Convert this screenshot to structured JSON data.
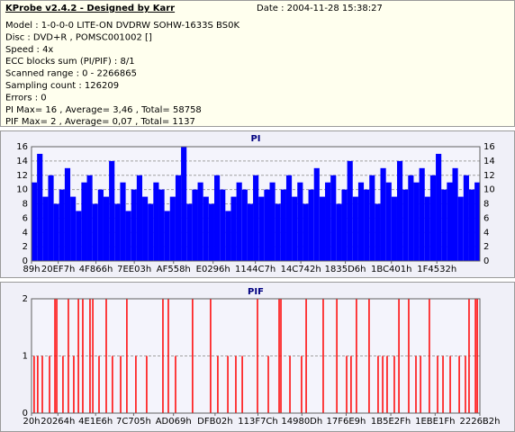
{
  "header": {
    "title": "KProbe v2.4.2 - Designed by Karr",
    "date": "Date : 2004-11-28 15:38:27",
    "lines": [
      "Model : 1-0-0-0 LITE-ON DVDRW SOHW-1633S BS0K",
      "Disc : DVD+R , POMSC001002 []",
      "Speed : 4x",
      "ECC blocks sum (PI/PIF) : 8/1",
      "Scanned range : 0 - 2266865",
      "Sampling count : 126209",
      "Errors : 0",
      "PI Max= 16 , Average= 3,46 , Total= 58758",
      "PIF Max= 2 , Average= 0,07 , Total= 1137"
    ]
  },
  "chart_data": [
    {
      "type": "bar",
      "title": "PI",
      "color": "#0000ff",
      "grid": true,
      "mirror_y_axis": true,
      "x": [
        0,
        28000,
        56000,
        84000,
        112000,
        140000,
        168000,
        196000,
        224000,
        252000,
        280000,
        308000,
        336000,
        364000,
        392000,
        420000,
        448000,
        476000,
        504000,
        532000,
        560000,
        588000,
        616000,
        644000,
        672000,
        700000,
        728000,
        756000,
        784000,
        812000,
        840000,
        868000,
        896000,
        924000,
        952000,
        980000,
        1008000,
        1036000,
        1064000,
        1092000,
        1120000,
        1148000,
        1176000,
        1204000,
        1232000,
        1260000,
        1288000,
        1316000,
        1344000,
        1372000,
        1400000,
        1428000,
        1456000,
        1484000,
        1512000,
        1540000,
        1568000,
        1596000,
        1624000,
        1652000,
        1680000,
        1708000,
        1736000,
        1764000,
        1792000,
        1820000,
        1848000,
        1876000,
        1904000,
        1932000,
        1960000,
        1988000,
        2016000,
        2044000,
        2072000,
        2100000,
        2128000,
        2156000,
        2184000,
        2212000,
        2240000
      ],
      "values": [
        11,
        15,
        9,
        12,
        8,
        10,
        13,
        9,
        7,
        11,
        12,
        8,
        10,
        9,
        14,
        8,
        11,
        7,
        10,
        12,
        9,
        8,
        11,
        10,
        7,
        9,
        12,
        16,
        8,
        10,
        11,
        9,
        8,
        12,
        10,
        7,
        9,
        11,
        10,
        8,
        12,
        9,
        10,
        11,
        8,
        10,
        12,
        9,
        11,
        8,
        10,
        13,
        9,
        11,
        12,
        8,
        10,
        14,
        9,
        11,
        10,
        12,
        8,
        13,
        11,
        9,
        14,
        10,
        12,
        11,
        13,
        9,
        12,
        15,
        10,
        11,
        13,
        9,
        12,
        10,
        11
      ],
      "xlim": [
        0,
        2266865
      ],
      "xticks": [
        {
          "value": 137,
          "label": "89h"
        },
        {
          "value": 134903,
          "label": "20EF7h"
        },
        {
          "value": 325734,
          "label": "4F866h"
        },
        {
          "value": 519683,
          "label": "7EE03h"
        },
        {
          "value": 718168,
          "label": "AF558h"
        },
        {
          "value": 918166,
          "label": "E0296h"
        },
        {
          "value": 1131719,
          "label": "1144C7h"
        },
        {
          "value": 1361730,
          "label": "14C742h"
        },
        {
          "value": 1586646,
          "label": "1835D6h"
        },
        {
          "value": 1819649,
          "label": "1BC401h"
        },
        {
          "value": 2049330,
          "label": "1F4532h"
        }
      ],
      "ylim": [
        0,
        16
      ],
      "yticks": [
        0,
        2,
        4,
        6,
        8,
        10,
        12,
        14,
        16
      ]
    },
    {
      "type": "spike",
      "title": "PIF",
      "color": "#ff0000",
      "grid": true,
      "mirror_y_axis": false,
      "x": [
        13000,
        31000,
        54000,
        90000,
        117000,
        126000,
        157000,
        184000,
        211000,
        234000,
        256000,
        292000,
        306000,
        337000,
        373000,
        404000,
        445000,
        476000,
        521000,
        575000,
        656000,
        683000,
        719000,
        804000,
        894000,
        930000,
        980000,
        1020000,
        1052000,
        1128000,
        1182000,
        1236000,
        1245000,
        1290000,
        1348000,
        1371000,
        1456000,
        1524000,
        1573000,
        1595000,
        1622000,
        1685000,
        1730000,
        1753000,
        1775000,
        1811000,
        1834000,
        1883000,
        1919000,
        1942000,
        1986000,
        2027000,
        2054000,
        2090000,
        2135000,
        2166000,
        2184000,
        2216000,
        2225000
      ],
      "values": [
        1,
        1,
        1,
        1,
        2,
        2,
        1,
        2,
        1,
        2,
        2,
        2,
        2,
        1,
        2,
        1,
        1,
        2,
        1,
        1,
        2,
        2,
        1,
        2,
        2,
        1,
        1,
        1,
        1,
        2,
        1,
        2,
        2,
        1,
        1,
        2,
        2,
        2,
        1,
        1,
        2,
        2,
        1,
        1,
        1,
        1,
        2,
        2,
        1,
        1,
        2,
        1,
        1,
        1,
        1,
        1,
        2,
        2,
        2
      ],
      "xlim": [
        0,
        2238130
      ],
      "xticks": [
        {
          "value": 32,
          "label": "20h"
        },
        {
          "value": 131684,
          "label": "20264h"
        },
        {
          "value": 319974,
          "label": "4E1E6h"
        },
        {
          "value": 509701,
          "label": "7C705h"
        },
        {
          "value": 708713,
          "label": "AD069h"
        },
        {
          "value": 916226,
          "label": "DFB02h"
        },
        {
          "value": 1130364,
          "label": "113F7Ch"
        },
        {
          "value": 1349645,
          "label": "14980Dh"
        },
        {
          "value": 1570537,
          "label": "17F6E9h"
        },
        {
          "value": 1793583,
          "label": "1B5E2Fh"
        },
        {
          "value": 2014751,
          "label": "1EBE1Fh"
        },
        {
          "value": 2238130,
          "label": "2226B2h"
        }
      ],
      "ylim": [
        0,
        2
      ],
      "yticks": [
        0,
        1,
        2
      ]
    }
  ]
}
